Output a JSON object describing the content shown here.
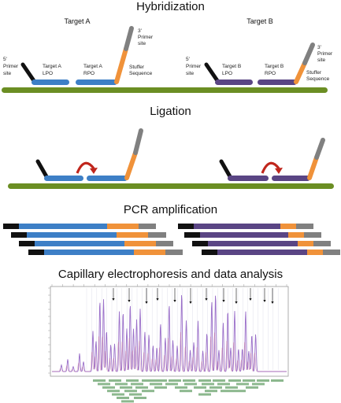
{
  "sections": {
    "hybridization": "Hybridization",
    "ligation": "Ligation",
    "pcr": "PCR amplification",
    "capillary": "Capillary electrophoresis and data analysis"
  },
  "target_a": {
    "title": "Target A",
    "primer5": [
      "5'",
      "Primer",
      "site"
    ],
    "lpo": [
      "Target A",
      "LPO"
    ],
    "rpo": [
      "Target A",
      "RPO"
    ],
    "primer3": [
      "3'",
      "Primer",
      "site"
    ],
    "stuffer": [
      "Stuffer",
      "Sequence"
    ]
  },
  "target_b": {
    "title": "Target B",
    "primer5": [
      "5'",
      "Primer",
      "site"
    ],
    "lpo": [
      "Target B",
      "LPO"
    ],
    "rpo": [
      "Target B",
      "RPO"
    ],
    "primer3": [
      "3'",
      "Primer",
      "site"
    ],
    "stuffer": [
      "Stuffer",
      "Sequence"
    ]
  },
  "colors": {
    "dna": "#6b8e23",
    "probe_a": "#3d7fc6",
    "probe_b": "#5a4584",
    "stuffer": "#f0923a",
    "primer": "#111111",
    "tail": "#808080",
    "arrow": "#c0261c",
    "trace": "#9a6fc9",
    "ref_text": "#2e7d32"
  },
  "icons": {
    "ligation_arrow": "curved-arrow-icon"
  }
}
